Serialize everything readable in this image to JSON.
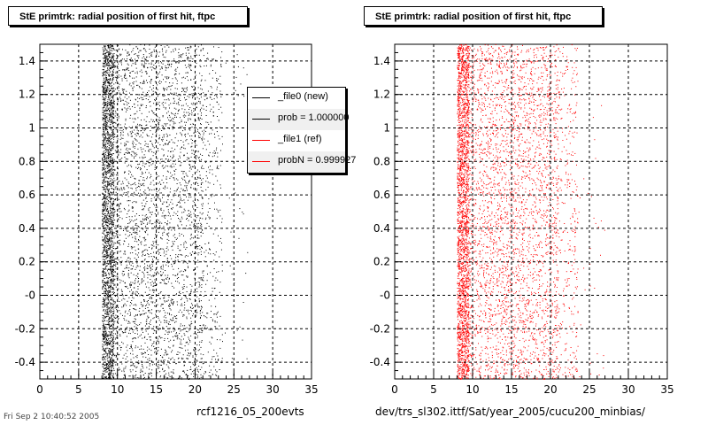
{
  "footnote": "Fri Sep 2 10:40:52 2005",
  "colors": {
    "new": "#000000",
    "ref": "#ff0000"
  },
  "legend": {
    "items": [
      {
        "label": "_file0 (new)",
        "color": "#000000"
      },
      {
        "label": "prob = 1.000000",
        "color": "#000000"
      },
      {
        "label": "_file1 (ref)",
        "color": "#ff0000"
      },
      {
        "label": "probN = 0.999927",
        "color": "#ff0000"
      }
    ]
  },
  "chart_data": [
    {
      "type": "scatter",
      "title": "StE primtrk: radial position of first hit, ftpc",
      "xlabel": "rcf1216_05_200evts",
      "ylabel": "",
      "xlim": [
        0,
        35
      ],
      "ylim": [
        -0.5,
        1.5
      ],
      "xticks": [
        0,
        5,
        10,
        15,
        20,
        25,
        30,
        35
      ],
      "yticks": [
        -0.4,
        -0.2,
        0,
        0.2,
        0.4,
        0.6,
        0.8,
        1,
        1.2,
        1.4
      ],
      "ytick_labels": [
        "-0.4",
        "-0.2",
        "-0",
        "0.2",
        "0.4",
        "0.6",
        "0.8",
        "1",
        "1.2",
        "1.4"
      ],
      "grid": true,
      "series": [
        {
          "name": "_file0 (new)",
          "color": "#000000",
          "x_density": [
            {
              "x": [
                8.0,
                9.5
              ],
              "density": "very high"
            },
            {
              "x": [
                9.5,
                21
              ],
              "density": "medium"
            },
            {
              "x": [
                21,
                23.5
              ],
              "density": "low"
            },
            {
              "x": [
                23.5,
                27
              ],
              "density": "very sparse"
            }
          ]
        }
      ]
    },
    {
      "type": "scatter",
      "title": "StE primtrk: radial position of first hit, ftpc",
      "xlabel": "dev/trs_sl302.ittf/Sat/year_2005/cucu200_minbias/",
      "ylabel": "",
      "xlim": [
        0,
        35
      ],
      "ylim": [
        -0.5,
        1.5
      ],
      "xticks": [
        0,
        5,
        10,
        15,
        20,
        25,
        30,
        35
      ],
      "yticks": [
        -0.4,
        -0.2,
        0,
        0.2,
        0.4,
        0.6,
        0.8,
        1,
        1.2,
        1.4
      ],
      "ytick_labels": [
        "-0.4",
        "-0.2",
        "-0",
        "0.2",
        "0.4",
        "0.6",
        "0.8",
        "1",
        "1.2",
        "1.4"
      ],
      "grid": true,
      "series": [
        {
          "name": "_file1 (ref)",
          "color": "#ff0000",
          "x_density": [
            {
              "x": [
                8.0,
                9.5
              ],
              "density": "very high"
            },
            {
              "x": [
                9.5,
                21
              ],
              "density": "medium"
            },
            {
              "x": [
                21,
                23.5
              ],
              "density": "low"
            },
            {
              "x": [
                23.5,
                27
              ],
              "density": "very sparse"
            }
          ]
        }
      ]
    }
  ]
}
